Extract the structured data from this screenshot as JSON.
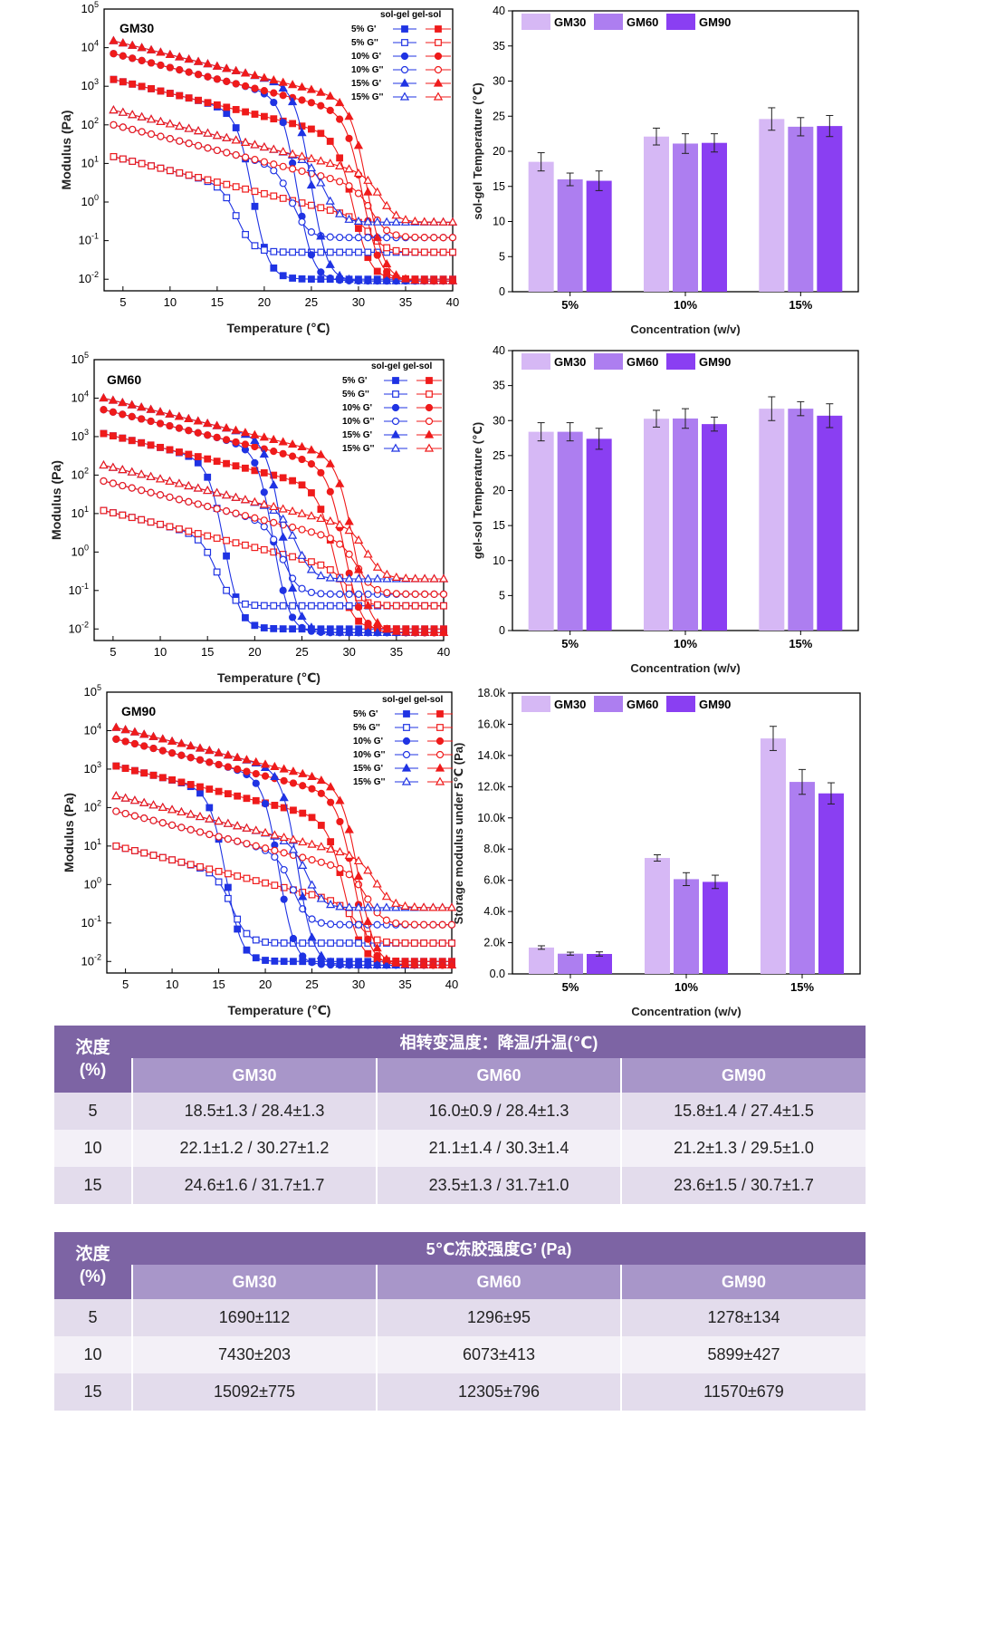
{
  "colors": {
    "red": "#ef1b1b",
    "blue": "#1f33e3",
    "bar_gm30": "#d6b8f5",
    "bar_gm60": "#ad7ef0",
    "bar_gm90": "#8a3ff2",
    "table_header": "#7d64a4",
    "table_subheader": "#a896c9"
  },
  "chart_data": [
    {
      "type": "line",
      "title": "GM30",
      "xlabel": "Temperature (℃)",
      "ylabel": "Modulus (Pa)",
      "xlim": [
        3,
        40
      ],
      "ylim_log10": [
        -2.3,
        5
      ],
      "x_ticks": [
        "5",
        "10",
        "15",
        "20",
        "25",
        "30",
        "35",
        "40"
      ],
      "y_ticks": [
        {
          "b": "10",
          "e": "-2"
        },
        {
          "b": "10",
          "e": "-1"
        },
        {
          "b": "10",
          "e": "0"
        },
        {
          "b": "10",
          "e": "1"
        },
        {
          "b": "10",
          "e": "2"
        },
        {
          "b": "10",
          "e": "3"
        },
        {
          "b": "10",
          "e": "4"
        },
        {
          "b": "10",
          "e": "5"
        }
      ],
      "legend_header": "sol-gel gel-sol",
      "series": [
        {
          "name": "5%  G'",
          "marker": "square",
          "filled": true,
          "high": 1500,
          "low": 0.01,
          "mid_cool": 18.8,
          "mid_heat": 29.5
        },
        {
          "name": "5%  G''",
          "marker": "square",
          "filled": false,
          "high": 15,
          "low": 0.05,
          "mid_cool": 17.2,
          "mid_heat": 31.5
        },
        {
          "name": "10%  G'",
          "marker": "circle",
          "filled": true,
          "high": 7000,
          "low": 0.009,
          "mid_cool": 23.5,
          "mid_heat": 30.5
        },
        {
          "name": "10%  G''",
          "marker": "circle",
          "filled": false,
          "high": 100,
          "low": 0.12,
          "mid_cool": 23.0,
          "mid_heat": 31.5
        },
        {
          "name": "15%  G'",
          "marker": "triangle",
          "filled": true,
          "high": 15000,
          "low": 0.009,
          "mid_cool": 25.0,
          "mid_heat": 31.0
        },
        {
          "name": "15%  G''",
          "marker": "triangle",
          "filled": false,
          "high": 240,
          "low": 0.3,
          "mid_cool": 26.5,
          "mid_heat": 32.5
        }
      ]
    },
    {
      "type": "bar",
      "title": "",
      "xlabel": "Concentration (w/v)",
      "ylabel": "sol-gel Temperature (℃)",
      "ylim": [
        0,
        40
      ],
      "y_ticks": [
        "0",
        "5",
        "10",
        "15",
        "20",
        "25",
        "30",
        "35",
        "40"
      ],
      "categories": [
        "5%",
        "10%",
        "15%"
      ],
      "series": [
        {
          "name": "GM30",
          "values": [
            18.5,
            22.1,
            24.6
          ],
          "errors": [
            1.3,
            1.2,
            1.6
          ]
        },
        {
          "name": "GM60",
          "values": [
            16.0,
            21.1,
            23.5
          ],
          "errors": [
            0.9,
            1.4,
            1.3
          ]
        },
        {
          "name": "GM90",
          "values": [
            15.8,
            21.2,
            23.6
          ],
          "errors": [
            1.4,
            1.3,
            1.5
          ]
        }
      ]
    },
    {
      "type": "line",
      "title": "GM60",
      "xlabel": "Temperature (℃)",
      "ylabel": "Modulus (Pa)",
      "xlim": [
        3,
        40
      ],
      "ylim_log10": [
        -2.3,
        5
      ],
      "x_ticks": [
        "5",
        "10",
        "15",
        "20",
        "25",
        "30",
        "35",
        "40"
      ],
      "y_ticks": [
        {
          "b": "10",
          "e": "-2"
        },
        {
          "b": "10",
          "e": "-1"
        },
        {
          "b": "10",
          "e": "0"
        },
        {
          "b": "10",
          "e": "1"
        },
        {
          "b": "10",
          "e": "2"
        },
        {
          "b": "10",
          "e": "3"
        },
        {
          "b": "10",
          "e": "4"
        },
        {
          "b": "10",
          "e": "5"
        }
      ],
      "legend_header": "sol-gel gel-sol",
      "series": [
        {
          "name": "5%  G'",
          "marker": "square",
          "filled": true,
          "high": 1200,
          "low": 0.01,
          "mid_cool": 16.8,
          "mid_heat": 28.5
        },
        {
          "name": "5%  G''",
          "marker": "square",
          "filled": false,
          "high": 12,
          "low": 0.04,
          "mid_cool": 16.0,
          "mid_heat": 30.0
        },
        {
          "name": "10%  G'",
          "marker": "circle",
          "filled": true,
          "high": 5000,
          "low": 0.008,
          "mid_cool": 22.0,
          "mid_heat": 29.5
        },
        {
          "name": "10%  G''",
          "marker": "circle",
          "filled": false,
          "high": 70,
          "low": 0.08,
          "mid_cool": 23.0,
          "mid_heat": 31.0
        },
        {
          "name": "15%  G'",
          "marker": "triangle",
          "filled": true,
          "high": 10000,
          "low": 0.008,
          "mid_cool": 23.0,
          "mid_heat": 30.5
        },
        {
          "name": "15%  G''",
          "marker": "triangle",
          "filled": false,
          "high": 180,
          "low": 0.2,
          "mid_cool": 24.5,
          "mid_heat": 32.0
        }
      ]
    },
    {
      "type": "bar",
      "title": "",
      "xlabel": "Concentration (w/v)",
      "ylabel": "gel-sol Temperature (℃)",
      "ylim": [
        0,
        40
      ],
      "y_ticks": [
        "0",
        "5",
        "10",
        "15",
        "20",
        "25",
        "30",
        "35",
        "40"
      ],
      "categories": [
        "5%",
        "10%",
        "15%"
      ],
      "series": [
        {
          "name": "GM30",
          "values": [
            28.4,
            30.27,
            31.7
          ],
          "errors": [
            1.3,
            1.2,
            1.7
          ]
        },
        {
          "name": "GM60",
          "values": [
            28.4,
            30.3,
            31.7
          ],
          "errors": [
            1.3,
            1.4,
            1.0
          ]
        },
        {
          "name": "GM90",
          "values": [
            27.4,
            29.5,
            30.7
          ],
          "errors": [
            1.5,
            1.0,
            1.7
          ]
        }
      ]
    },
    {
      "type": "line",
      "title": "GM90",
      "xlabel": "Temperature (℃)",
      "ylabel": "Modulus (Pa)",
      "xlim": [
        3,
        40
      ],
      "ylim_log10": [
        -2.3,
        5
      ],
      "x_ticks": [
        "5",
        "10",
        "15",
        "20",
        "25",
        "30",
        "35",
        "40"
      ],
      "y_ticks": [
        {
          "b": "10",
          "e": "-2"
        },
        {
          "b": "10",
          "e": "-1"
        },
        {
          "b": "10",
          "e": "0"
        },
        {
          "b": "10",
          "e": "1"
        },
        {
          "b": "10",
          "e": "2"
        },
        {
          "b": "10",
          "e": "3"
        },
        {
          "b": "10",
          "e": "4"
        },
        {
          "b": "10",
          "e": "5"
        }
      ],
      "legend_header": "sol-gel gel-sol",
      "series": [
        {
          "name": "5%  G'",
          "marker": "square",
          "filled": true,
          "high": 1200,
          "low": 0.01,
          "mid_cool": 15.8,
          "mid_heat": 28.5
        },
        {
          "name": "5%  G''",
          "marker": "square",
          "filled": false,
          "high": 10,
          "low": 0.03,
          "mid_cool": 16.5,
          "mid_heat": 30.0
        },
        {
          "name": "10%  G'",
          "marker": "circle",
          "filled": true,
          "high": 6000,
          "low": 0.008,
          "mid_cool": 21.5,
          "mid_heat": 29.5
        },
        {
          "name": "10%  G''",
          "marker": "circle",
          "filled": false,
          "high": 80,
          "low": 0.09,
          "mid_cool": 23.0,
          "mid_heat": 31.0
        },
        {
          "name": "15%  G'",
          "marker": "triangle",
          "filled": true,
          "high": 12000,
          "low": 0.008,
          "mid_cool": 23.5,
          "mid_heat": 30.0
        },
        {
          "name": "15%  G''",
          "marker": "triangle",
          "filled": false,
          "high": 200,
          "low": 0.25,
          "mid_cool": 24.5,
          "mid_heat": 32.0
        }
      ]
    },
    {
      "type": "bar",
      "title": "",
      "xlabel": "Concentration (w/v)",
      "ylabel": "Storage modulus under 5℃ (Pa)",
      "ylim": [
        0,
        18000
      ],
      "y_ticks": [
        "0.0",
        "2.0k",
        "4.0k",
        "6.0k",
        "8.0k",
        "10.0k",
        "12.0k",
        "14.0k",
        "16.0k",
        "18.0k"
      ],
      "categories": [
        "5%",
        "10%",
        "15%"
      ],
      "series": [
        {
          "name": "GM30",
          "values": [
            1690,
            7430,
            15092
          ],
          "errors": [
            112,
            203,
            775
          ]
        },
        {
          "name": "GM60",
          "values": [
            1296,
            6073,
            12305
          ],
          "errors": [
            95,
            413,
            796
          ]
        },
        {
          "name": "GM90",
          "values": [
            1278,
            5899,
            11570
          ],
          "errors": [
            134,
            427,
            679
          ]
        }
      ]
    }
  ],
  "table_phase": {
    "corner_line1": "浓度",
    "corner_line2": "(%)",
    "title": "相转变温度：降温/升温(℃)",
    "columns": [
      "GM30",
      "GM60",
      "GM90"
    ],
    "rows": [
      {
        "conc": "5",
        "cells": [
          "18.5±1.3 / 28.4±1.3",
          "16.0±0.9 / 28.4±1.3",
          "15.8±1.4 / 27.4±1.5"
        ]
      },
      {
        "conc": "10",
        "cells": [
          "22.1±1.2 / 30.27±1.2",
          "21.1±1.4 / 30.3±1.4",
          "21.2±1.3 / 29.5±1.0"
        ]
      },
      {
        "conc": "15",
        "cells": [
          "24.6±1.6 / 31.7±1.7",
          "23.5±1.3 / 31.7±1.0",
          "23.6±1.5 / 30.7±1.7"
        ]
      }
    ]
  },
  "table_modulus": {
    "corner_line1": "浓度",
    "corner_line2": "(%)",
    "title": "5℃冻胶强度G’ (Pa)",
    "columns": [
      "GM30",
      "GM60",
      "GM90"
    ],
    "rows": [
      {
        "conc": "5",
        "cells": [
          "1690±112",
          "1296±95",
          "1278±134"
        ]
      },
      {
        "conc": "10",
        "cells": [
          "7430±203",
          "6073±413",
          "5899±427"
        ]
      },
      {
        "conc": "15",
        "cells": [
          "15092±775",
          "12305±796",
          "11570±679"
        ]
      }
    ]
  }
}
